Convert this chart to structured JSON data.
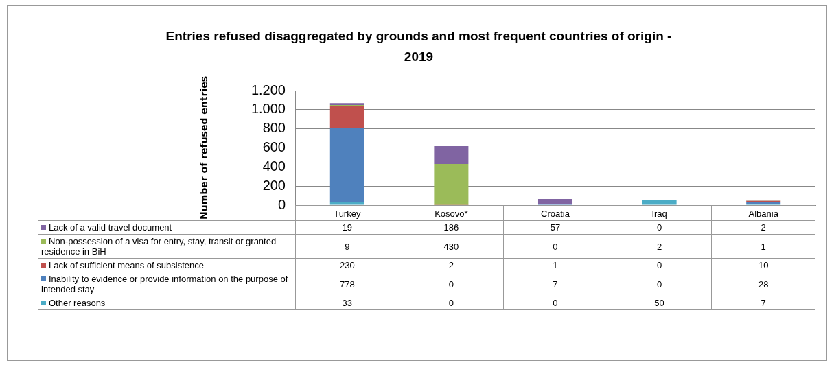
{
  "chart_data": {
    "type": "bar",
    "title": "Entries refused disaggregated by grounds and most frequent countries of origin - 2019",
    "ylabel": "Number of refused entries",
    "categories": [
      "Turkey",
      "Kosovo*",
      "Croatia",
      "Iraq",
      "Albania"
    ],
    "stacked": true,
    "data_labels": true,
    "legend": "bottom",
    "grid": "y",
    "ylim": [
      0,
      1200
    ],
    "yticks": [
      0,
      200,
      {
        "value": 400,
        "label": "400"
      },
      600,
      800,
      {
        "value": 1000,
        "label": "1.000"
      },
      {
        "value": 1200,
        "label": "1.200"
      }
    ],
    "series": [
      {
        "name": "Other reasons",
        "color": "#4bacc6",
        "values": [
          33,
          0,
          0,
          50,
          7
        ]
      },
      {
        "name": "Inability to evidence or provide information on the purpose of intended stay",
        "color": "#4f81bd",
        "values": [
          778,
          0,
          7,
          0,
          28
        ]
      },
      {
        "name": "Lack of sufficient means of subsistence",
        "color": "#c0504d",
        "values": [
          230,
          2,
          1,
          0,
          10
        ]
      },
      {
        "name": "Non-possession of a visa for entry, stay, transit or granted residence in BiH",
        "color": "#9bbb59",
        "values": [
          9,
          430,
          0,
          2,
          1
        ]
      },
      {
        "name": "Lack of a valid travel document",
        "color": "#8064a2",
        "values": [
          19,
          186,
          57,
          0,
          2
        ]
      }
    ]
  }
}
